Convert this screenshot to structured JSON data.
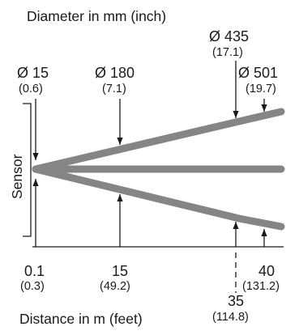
{
  "titles": {
    "diameter": "Diameter in mm (inch)",
    "distance": "Distance in m (feet)",
    "sensor": "Sensor"
  },
  "diameters": [
    {
      "label": "Ø 15",
      "sub": "(0.6)"
    },
    {
      "label": "Ø 180",
      "sub": "(7.1)"
    },
    {
      "label": "Ø 435",
      "sub": "(17.1)"
    },
    {
      "label": "Ø 501",
      "sub": "(19.7)"
    }
  ],
  "distances": [
    {
      "label": "0.1",
      "sub": "(0.3)"
    },
    {
      "label": "15",
      "sub": "(49.2)"
    },
    {
      "label": "35",
      "sub": "(114.8)"
    },
    {
      "label": "40",
      "sub": "(131.2)"
    }
  ],
  "colors": {
    "beam": "#858585",
    "line": "#1a1a1a"
  }
}
